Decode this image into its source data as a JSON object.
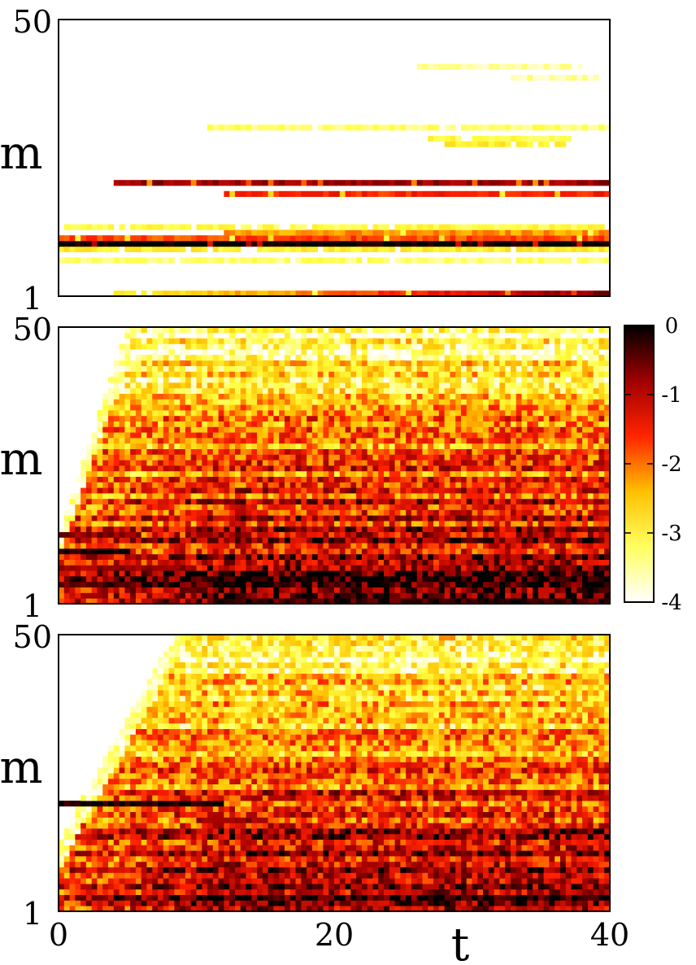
{
  "chart_data": [
    {
      "type": "heatmap",
      "panel": "top",
      "ylabel": "m",
      "y_ticks": [
        "1",
        "50"
      ],
      "y_range": [
        1,
        50
      ],
      "x_range": [
        0,
        40
      ],
      "rows": 50,
      "cols": 100,
      "bands": [
        {
          "m": 1,
          "level": -0.6,
          "t0": 4,
          "t1": 40,
          "grow": true
        },
        {
          "m": 7,
          "level": -3.4,
          "t0": 0,
          "t1": 40
        },
        {
          "m": 9,
          "level": -3.0,
          "t0": 0,
          "t1": 40
        },
        {
          "m": 10,
          "level": 0.0,
          "t0": 0,
          "t1": 40
        },
        {
          "m": 11,
          "level": -1.8,
          "t0": 0,
          "t1": 40
        },
        {
          "m": 12,
          "level": -2.2,
          "t0": 12,
          "t1": 40
        },
        {
          "m": 13,
          "level": -3.2,
          "t0": 0,
          "t1": 40
        },
        {
          "m": 19,
          "level": -1.6,
          "t0": 12,
          "t1": 40
        },
        {
          "m": 21,
          "level": -0.8,
          "t0": 4,
          "t1": 40
        },
        {
          "m": 28,
          "level": -3.0,
          "t0": 28,
          "t1": 37
        },
        {
          "m": 29,
          "level": -3.2,
          "t0": 27,
          "t1": 37
        },
        {
          "m": 31,
          "level": -3.4,
          "t0": 11,
          "t1": 40
        },
        {
          "m": 40,
          "level": -3.6,
          "t0": 33,
          "t1": 39
        },
        {
          "m": 42,
          "level": -3.6,
          "t0": 26,
          "t1": 38
        }
      ]
    },
    {
      "type": "heatmap",
      "panel": "middle",
      "ylabel": "m",
      "y_ticks": [
        "1",
        "50"
      ],
      "y_range": [
        1,
        50
      ],
      "x_range": [
        0,
        40
      ],
      "rows": 50,
      "cols": 100,
      "spread_rate": 7.5,
      "bands": [
        {
          "m": 1,
          "level": -0.4,
          "t0": 12,
          "t1": 40
        },
        {
          "m": 4,
          "level": -0.6,
          "t0": 0,
          "t1": 12
        },
        {
          "m": 7,
          "level": -0.8,
          "t0": 0,
          "t1": 9
        },
        {
          "m": 10,
          "level": -0.1,
          "t0": 0,
          "t1": 5
        },
        {
          "m": 13,
          "level": -0.7,
          "t0": 0,
          "t1": 6
        }
      ]
    },
    {
      "type": "heatmap",
      "panel": "bottom",
      "ylabel": "m",
      "y_ticks": [
        "1",
        "50"
      ],
      "y_range": [
        1,
        50
      ],
      "x_range": [
        0,
        40
      ],
      "xlabel": "t",
      "x_ticks": [
        "0",
        "20",
        "40"
      ],
      "x_tick_values": [
        0,
        20,
        40
      ],
      "rows": 50,
      "cols": 100,
      "spread_rate": 4.5,
      "bands": [
        {
          "m": 3,
          "level": -0.5,
          "t0": 30,
          "t1": 40
        },
        {
          "m": 20,
          "level": -0.1,
          "t0": 0,
          "t1": 12
        },
        {
          "m": 17,
          "level": -0.8,
          "t0": 10,
          "t1": 15
        }
      ]
    }
  ],
  "colorbar": {
    "ticks": [
      "0",
      "-1",
      "-2",
      "-3",
      "-4"
    ],
    "tick_values": [
      0,
      -1,
      -2,
      -3,
      -4
    ],
    "range": [
      -4,
      0
    ],
    "colormap": [
      "#ffffff",
      "#ffff40",
      "#ffc000",
      "#ff2000",
      "#a00000",
      "#000000"
    ]
  }
}
